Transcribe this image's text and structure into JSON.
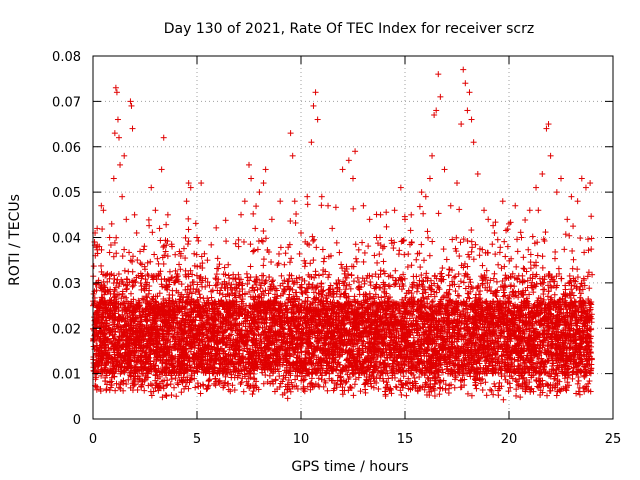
{
  "chart_data": {
    "type": "scatter",
    "title": "Day 130 of 2021, Rate Of TEC Index for receiver scrz",
    "xlabel": "GPS time / hours",
    "ylabel": "ROTI / TECUs",
    "xlim": [
      0,
      25
    ],
    "ylim": [
      0,
      0.08
    ],
    "x_ticks": [
      0,
      5,
      10,
      15,
      20,
      25
    ],
    "y_ticks": [
      0,
      0.01,
      0.02,
      0.03,
      0.04,
      0.05,
      0.06,
      0.07,
      0.08
    ],
    "x_tick_labels": [
      "0",
      "5",
      "10",
      "15",
      "20",
      "25"
    ],
    "y_tick_labels": [
      "0",
      "0.01",
      "0.02",
      "0.03",
      "0.04",
      "0.05",
      "0.06",
      "0.07",
      "0.08"
    ],
    "grid": true,
    "marker": "+",
    "color": "#e00000",
    "series": [
      {
        "name": "ROTI",
        "points": [
          [
            0.1,
            0.041
          ],
          [
            0.2,
            0.042
          ],
          [
            0.3,
            0.038
          ],
          [
            0.4,
            0.047
          ],
          [
            0.5,
            0.046
          ],
          [
            0.6,
            0.028
          ],
          [
            0.7,
            0.032
          ],
          [
            0.8,
            0.04
          ],
          [
            0.9,
            0.043
          ],
          [
            1.0,
            0.053
          ],
          [
            1.05,
            0.063
          ],
          [
            1.1,
            0.073
          ],
          [
            1.15,
            0.072
          ],
          [
            1.2,
            0.066
          ],
          [
            1.25,
            0.062
          ],
          [
            1.3,
            0.056
          ],
          [
            1.4,
            0.049
          ],
          [
            1.5,
            0.058
          ],
          [
            1.6,
            0.044
          ],
          [
            1.8,
            0.07
          ],
          [
            1.85,
            0.069
          ],
          [
            1.9,
            0.064
          ],
          [
            2.0,
            0.045
          ],
          [
            2.1,
            0.041
          ],
          [
            2.5,
            0.033
          ],
          [
            2.8,
            0.051
          ],
          [
            3.0,
            0.046
          ],
          [
            3.2,
            0.042
          ],
          [
            3.3,
            0.055
          ],
          [
            3.4,
            0.062
          ],
          [
            3.6,
            0.045
          ],
          [
            3.8,
            0.038
          ],
          [
            4.2,
            0.033
          ],
          [
            4.5,
            0.048
          ],
          [
            4.6,
            0.052
          ],
          [
            4.7,
            0.051
          ],
          [
            5.0,
            0.04
          ],
          [
            5.2,
            0.052
          ],
          [
            5.5,
            0.035
          ],
          [
            6.0,
            0.03
          ],
          [
            6.5,
            0.034
          ],
          [
            7.0,
            0.038
          ],
          [
            7.3,
            0.048
          ],
          [
            7.5,
            0.056
          ],
          [
            7.6,
            0.053
          ],
          [
            7.8,
            0.042
          ],
          [
            8.0,
            0.05
          ],
          [
            8.2,
            0.052
          ],
          [
            8.3,
            0.055
          ],
          [
            8.6,
            0.044
          ],
          [
            9.0,
            0.048
          ],
          [
            9.2,
            0.034
          ],
          [
            9.5,
            0.063
          ],
          [
            9.6,
            0.058
          ],
          [
            9.7,
            0.048
          ],
          [
            10.0,
            0.041
          ],
          [
            10.3,
            0.049
          ],
          [
            10.5,
            0.061
          ],
          [
            10.6,
            0.069
          ],
          [
            10.7,
            0.072
          ],
          [
            10.8,
            0.066
          ],
          [
            11.0,
            0.049
          ],
          [
            11.3,
            0.047
          ],
          [
            11.5,
            0.042
          ],
          [
            12.0,
            0.055
          ],
          [
            12.3,
            0.057
          ],
          [
            12.5,
            0.053
          ],
          [
            12.6,
            0.059
          ],
          [
            13.0,
            0.047
          ],
          [
            13.3,
            0.044
          ],
          [
            13.8,
            0.04
          ],
          [
            14.0,
            0.038
          ],
          [
            14.5,
            0.046
          ],
          [
            14.8,
            0.051
          ],
          [
            15.0,
            0.044
          ],
          [
            15.3,
            0.045
          ],
          [
            15.8,
            0.05
          ],
          [
            16.0,
            0.049
          ],
          [
            16.2,
            0.053
          ],
          [
            16.3,
            0.058
          ],
          [
            16.4,
            0.067
          ],
          [
            16.5,
            0.068
          ],
          [
            16.6,
            0.076
          ],
          [
            16.7,
            0.071
          ],
          [
            16.9,
            0.055
          ],
          [
            17.2,
            0.047
          ],
          [
            17.5,
            0.052
          ],
          [
            17.7,
            0.065
          ],
          [
            17.8,
            0.077
          ],
          [
            17.9,
            0.074
          ],
          [
            18.0,
            0.068
          ],
          [
            18.1,
            0.072
          ],
          [
            18.2,
            0.066
          ],
          [
            18.3,
            0.061
          ],
          [
            18.5,
            0.054
          ],
          [
            18.8,
            0.046
          ],
          [
            19.0,
            0.044
          ],
          [
            19.3,
            0.041
          ],
          [
            19.7,
            0.048
          ],
          [
            20.0,
            0.043
          ],
          [
            20.3,
            0.047
          ],
          [
            20.6,
            0.04
          ],
          [
            21.0,
            0.046
          ],
          [
            21.3,
            0.051
          ],
          [
            21.6,
            0.054
          ],
          [
            21.8,
            0.064
          ],
          [
            21.9,
            0.065
          ],
          [
            22.0,
            0.058
          ],
          [
            22.3,
            0.05
          ],
          [
            22.5,
            0.053
          ],
          [
            22.8,
            0.044
          ],
          [
            23.0,
            0.049
          ],
          [
            23.3,
            0.048
          ],
          [
            23.5,
            0.053
          ],
          [
            23.7,
            0.051
          ],
          [
            23.9,
            0.052
          ]
        ]
      }
    ],
    "density_note": "dense band of points between 0.005 and 0.04 across 0-24 hours"
  }
}
